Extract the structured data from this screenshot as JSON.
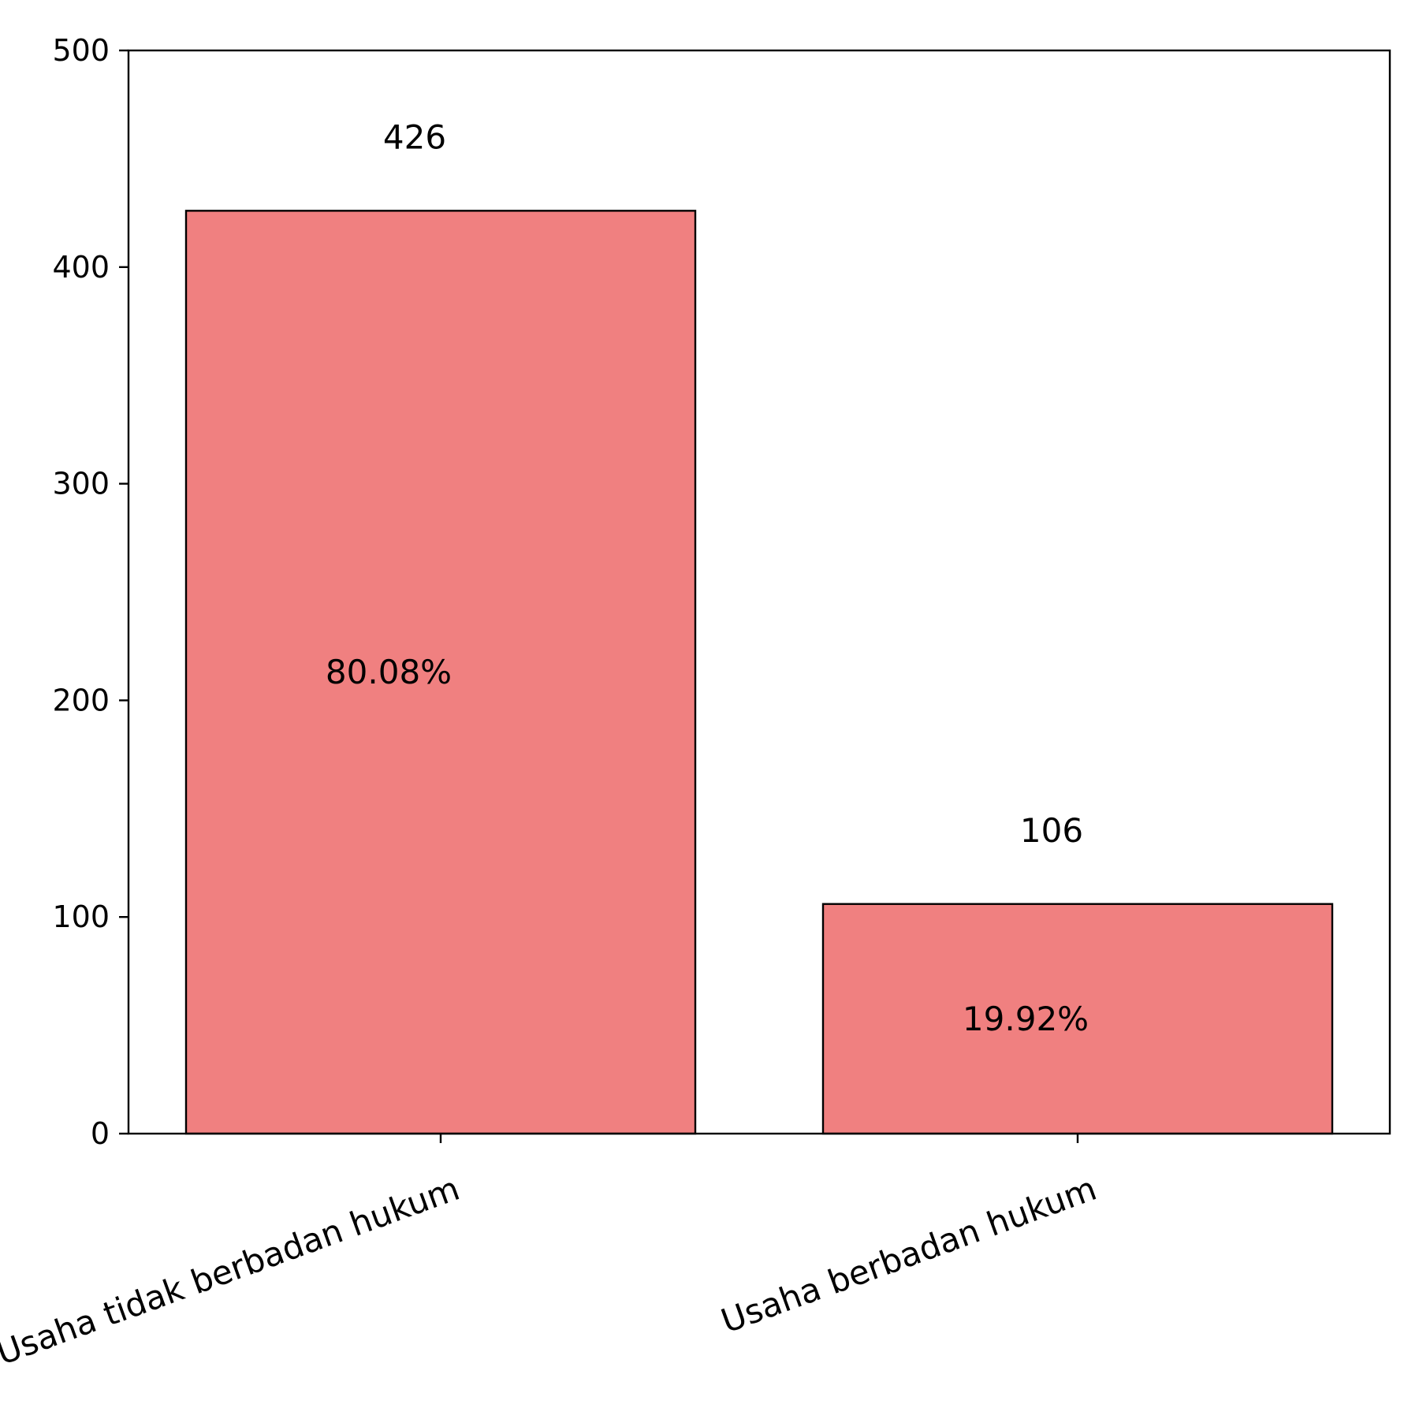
{
  "chart_data": {
    "type": "bar",
    "categories": [
      "Usaha tidak berbadan hukum",
      "Usaha berbadan hukum"
    ],
    "values": [
      426,
      106
    ],
    "value_labels": [
      "426",
      "106"
    ],
    "percent_labels": [
      "80.08%",
      "19.92%"
    ],
    "title": "",
    "xlabel": "",
    "ylabel": "",
    "ylim": [
      0,
      500
    ],
    "yticks": [
      0,
      100,
      200,
      300,
      400,
      500
    ],
    "grid": false,
    "colors": {
      "bar": "#f08080",
      "edge": "#000000"
    }
  }
}
